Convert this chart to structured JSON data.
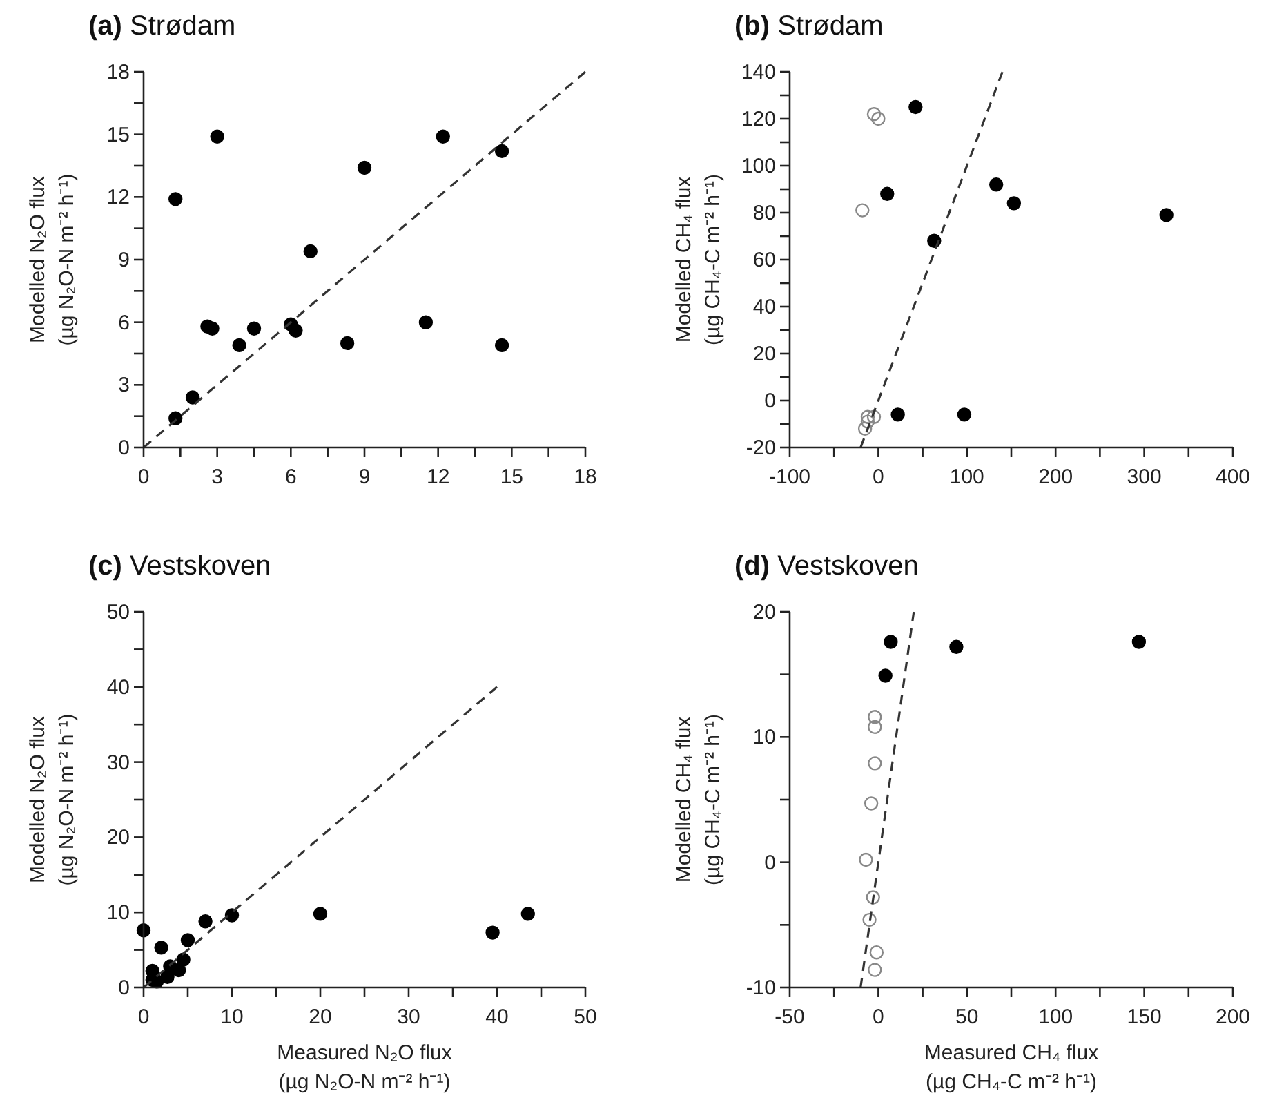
{
  "chart_data": [
    {
      "type": "scatter",
      "title": "(a) Strødam",
      "ylabel": "Modelled N₂O flux\n(µg N₂O-N m⁻² h⁻¹)",
      "marker": "circle",
      "xlim": [
        0,
        18
      ],
      "ylim": [
        0,
        18
      ],
      "xticks": [
        0,
        {
          "value": 1.5,
          "label": null
        },
        3,
        {
          "value": 4.5,
          "label": null
        },
        6,
        {
          "value": 7.5,
          "label": null
        },
        9,
        {
          "value": 10.5,
          "label": null
        },
        12,
        {
          "value": 13.5,
          "label": null
        },
        15,
        {
          "value": 16.5,
          "label": null
        },
        18
      ],
      "yticks": [
        0,
        {
          "value": 1.5,
          "label": null
        },
        3,
        {
          "value": 4.5,
          "label": null
        },
        6,
        {
          "value": 7.5,
          "label": null
        },
        9,
        {
          "value": 10.5,
          "label": null
        },
        12,
        {
          "value": 13.5,
          "label": null
        },
        15,
        {
          "value": 16.5,
          "label": null
        },
        18
      ],
      "series": [
        {
          "color": "#000000",
          "x": [
            1.3,
            1.3,
            2.0,
            3.0,
            2.6,
            2.8,
            3.9,
            4.5,
            6.0,
            6.2,
            6.8,
            8.3,
            9.0,
            11.5,
            12.2,
            14.6,
            14.6
          ],
          "values": [
            11.9,
            1.4,
            2.4,
            14.9,
            5.8,
            5.7,
            4.9,
            5.7,
            5.9,
            5.6,
            9.4,
            5.0,
            13.4,
            6.0,
            14.9,
            14.2,
            4.9
          ]
        },
        {
          "type": "line",
          "color": "#333333",
          "line_style": "dashed",
          "marker": "none",
          "x": [
            0,
            18
          ],
          "values": [
            0,
            18
          ]
        }
      ]
    },
    {
      "type": "scatter",
      "title": "(b) Strødam",
      "ylabel": "Modelled CH₄ flux\n(µg CH₄-C m⁻² h⁻¹)",
      "marker": "circle",
      "xlim": [
        -100,
        400
      ],
      "ylim": [
        -20,
        140
      ],
      "xticks": [
        -100,
        {
          "value": -50,
          "label": null
        },
        0,
        {
          "value": 50,
          "label": null
        },
        100,
        {
          "value": 150,
          "label": null
        },
        200,
        {
          "value": 250,
          "label": null
        },
        300,
        {
          "value": 350,
          "label": null
        },
        400
      ],
      "yticks": [
        -20,
        {
          "value": -10,
          "label": null
        },
        0,
        {
          "value": 10,
          "label": null
        },
        20,
        {
          "value": 30,
          "label": null
        },
        40,
        {
          "value": 50,
          "label": null
        },
        60,
        {
          "value": 70,
          "label": null
        },
        80,
        {
          "value": 90,
          "label": null
        },
        100,
        {
          "value": 110,
          "label": null
        },
        120,
        {
          "value": 130,
          "label": null
        },
        140
      ],
      "series": [
        {
          "color": "#000000",
          "x": [
            42,
            10,
            63,
            133,
            153,
            325,
            22,
            97
          ],
          "values": [
            125,
            88,
            68,
            92,
            84,
            79,
            -6,
            -6
          ]
        },
        {
          "color": "#888888",
          "x": [
            -5,
            0,
            -18,
            -12,
            -5,
            -15,
            -12
          ],
          "values": [
            122,
            120,
            81,
            -7,
            -7,
            -12,
            -9
          ]
        },
        {
          "type": "line",
          "color": "#333333",
          "line_style": "dashed",
          "marker": "none",
          "x": [
            -20,
            140
          ],
          "values": [
            -20,
            140
          ]
        }
      ]
    },
    {
      "type": "scatter",
      "title": "(c) Vestskoven",
      "xlabel": "Measured N₂O flux\n(µg N₂O-N m⁻² h⁻¹)",
      "ylabel": "Modelled N₂O flux\n(µg N₂O-N m⁻² h⁻¹)",
      "marker": "circle",
      "xlim": [
        0,
        50
      ],
      "ylim": [
        0,
        50
      ],
      "xticks": [
        0,
        {
          "value": 5,
          "label": null
        },
        10,
        {
          "value": 15,
          "label": null
        },
        20,
        {
          "value": 25,
          "label": null
        },
        30,
        {
          "value": 35,
          "label": null
        },
        40,
        {
          "value": 45,
          "label": null
        },
        50
      ],
      "yticks": [
        0,
        {
          "value": 5,
          "label": null
        },
        10,
        {
          "value": 15,
          "label": null
        },
        20,
        {
          "value": 25,
          "label": null
        },
        30,
        {
          "value": 35,
          "label": null
        },
        40,
        {
          "value": 45,
          "label": null
        },
        50
      ],
      "series": [
        {
          "color": "#000000",
          "x": [
            0,
            1,
            1,
            1.5,
            2,
            3,
            2.7,
            4,
            4.5,
            5,
            7,
            10,
            20,
            39.5,
            43.5
          ],
          "values": [
            7.6,
            2.2,
            1,
            0.8,
            5.3,
            2.8,
            1.4,
            2.3,
            3.7,
            6.3,
            8.8,
            9.6,
            9.8,
            7.3,
            9.8
          ]
        },
        {
          "type": "line",
          "color": "#333333",
          "line_style": "dashed",
          "marker": "none",
          "x": [
            0,
            40
          ],
          "values": [
            0,
            40
          ]
        }
      ]
    },
    {
      "type": "scatter",
      "title": "(d) Vestskoven",
      "xlabel": "Measured CH₄ flux\n(µg CH₄-C m⁻² h⁻¹)",
      "ylabel": "Modelled CH₄ flux\n(µg CH₄-C m⁻² h⁻¹)",
      "marker": "circle",
      "xlim": [
        -50,
        200
      ],
      "ylim": [
        -10,
        20
      ],
      "xticks": [
        -50,
        {
          "value": -25,
          "label": null
        },
        0,
        {
          "value": 25,
          "label": null
        },
        50,
        {
          "value": 75,
          "label": null
        },
        100,
        {
          "value": 125,
          "label": null
        },
        150,
        {
          "value": 175,
          "label": null
        },
        200
      ],
      "yticks": [
        -10,
        {
          "value": -5,
          "label": null
        },
        0,
        {
          "value": 5,
          "label": null
        },
        10,
        {
          "value": 15,
          "label": null
        },
        20
      ],
      "series": [
        {
          "color": "#000000",
          "x": [
            7,
            4,
            44,
            147
          ],
          "values": [
            17.6,
            14.9,
            17.2,
            17.6
          ]
        },
        {
          "color": "#888888",
          "x": [
            -2,
            -2,
            -2,
            -4,
            -7,
            -3,
            -5,
            -1,
            -2
          ],
          "values": [
            11.6,
            10.8,
            7.9,
            4.7,
            0.2,
            -2.8,
            -4.6,
            -7.2,
            -8.6
          ]
        },
        {
          "type": "line",
          "color": "#333333",
          "line_style": "dashed",
          "marker": "none",
          "x": [
            -10,
            20
          ],
          "values": [
            -10,
            20
          ]
        }
      ]
    }
  ]
}
